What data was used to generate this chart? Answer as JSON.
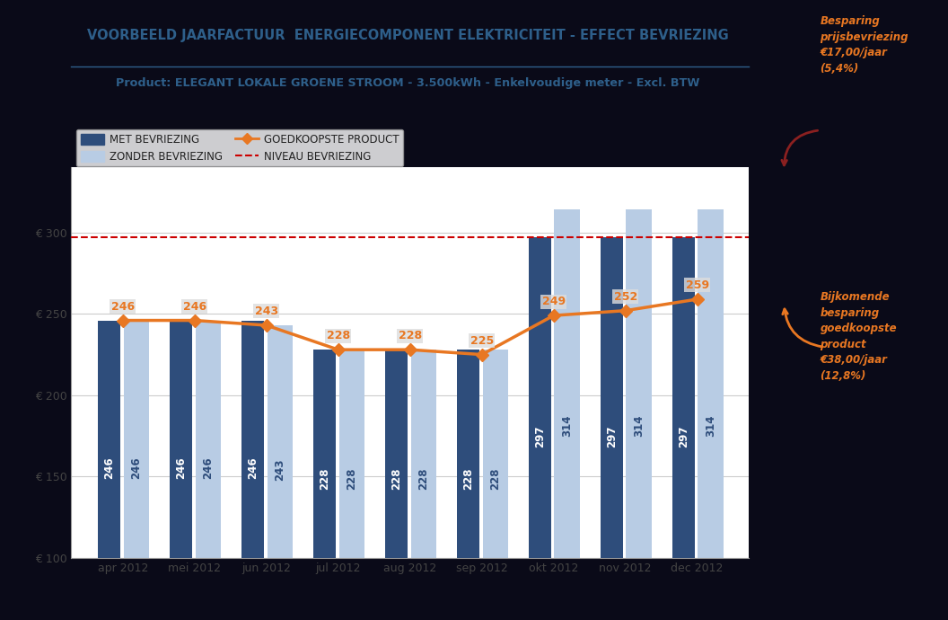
{
  "title_line1": "VOORBEELD JAARFACTUUR  ENERGIECOMPONENT ELEKTRICITEIT - EFFECT BEVRIEZING",
  "title_line2_prefix": "Product: ",
  "title_line2_rest": "ELEGANT LOKALE GROENE STROOM - 3.500kWh - Enkelvoudige meter - Excl. BTW",
  "months": [
    "apr 2012",
    "mei 2012",
    "jun 2012",
    "jul 2012",
    "aug 2012",
    "sep 2012",
    "okt 2012",
    "nov 2012",
    "dec 2012"
  ],
  "dark_bars": [
    246,
    246,
    246,
    228,
    228,
    228,
    297,
    297,
    297
  ],
  "light_bars": [
    246,
    246,
    243,
    228,
    228,
    228,
    314,
    314,
    314
  ],
  "line_values": [
    246,
    246,
    243,
    228,
    228,
    225,
    249,
    252,
    259
  ],
  "niveau_bevriezing": 297,
  "dark_bar_color": "#2E4D7B",
  "light_bar_color": "#B8CCE4",
  "line_color": "#E87722",
  "niveau_color": "#CC0000",
  "bg_color": "#0a0a18",
  "yticks": [
    100,
    150,
    200,
    250,
    300
  ],
  "ytick_labels": [
    "€ 100",
    "€ 150",
    "€ 200",
    "€ 250",
    "€ 300"
  ],
  "ylim": [
    100,
    340
  ],
  "bar_width": 0.32
}
